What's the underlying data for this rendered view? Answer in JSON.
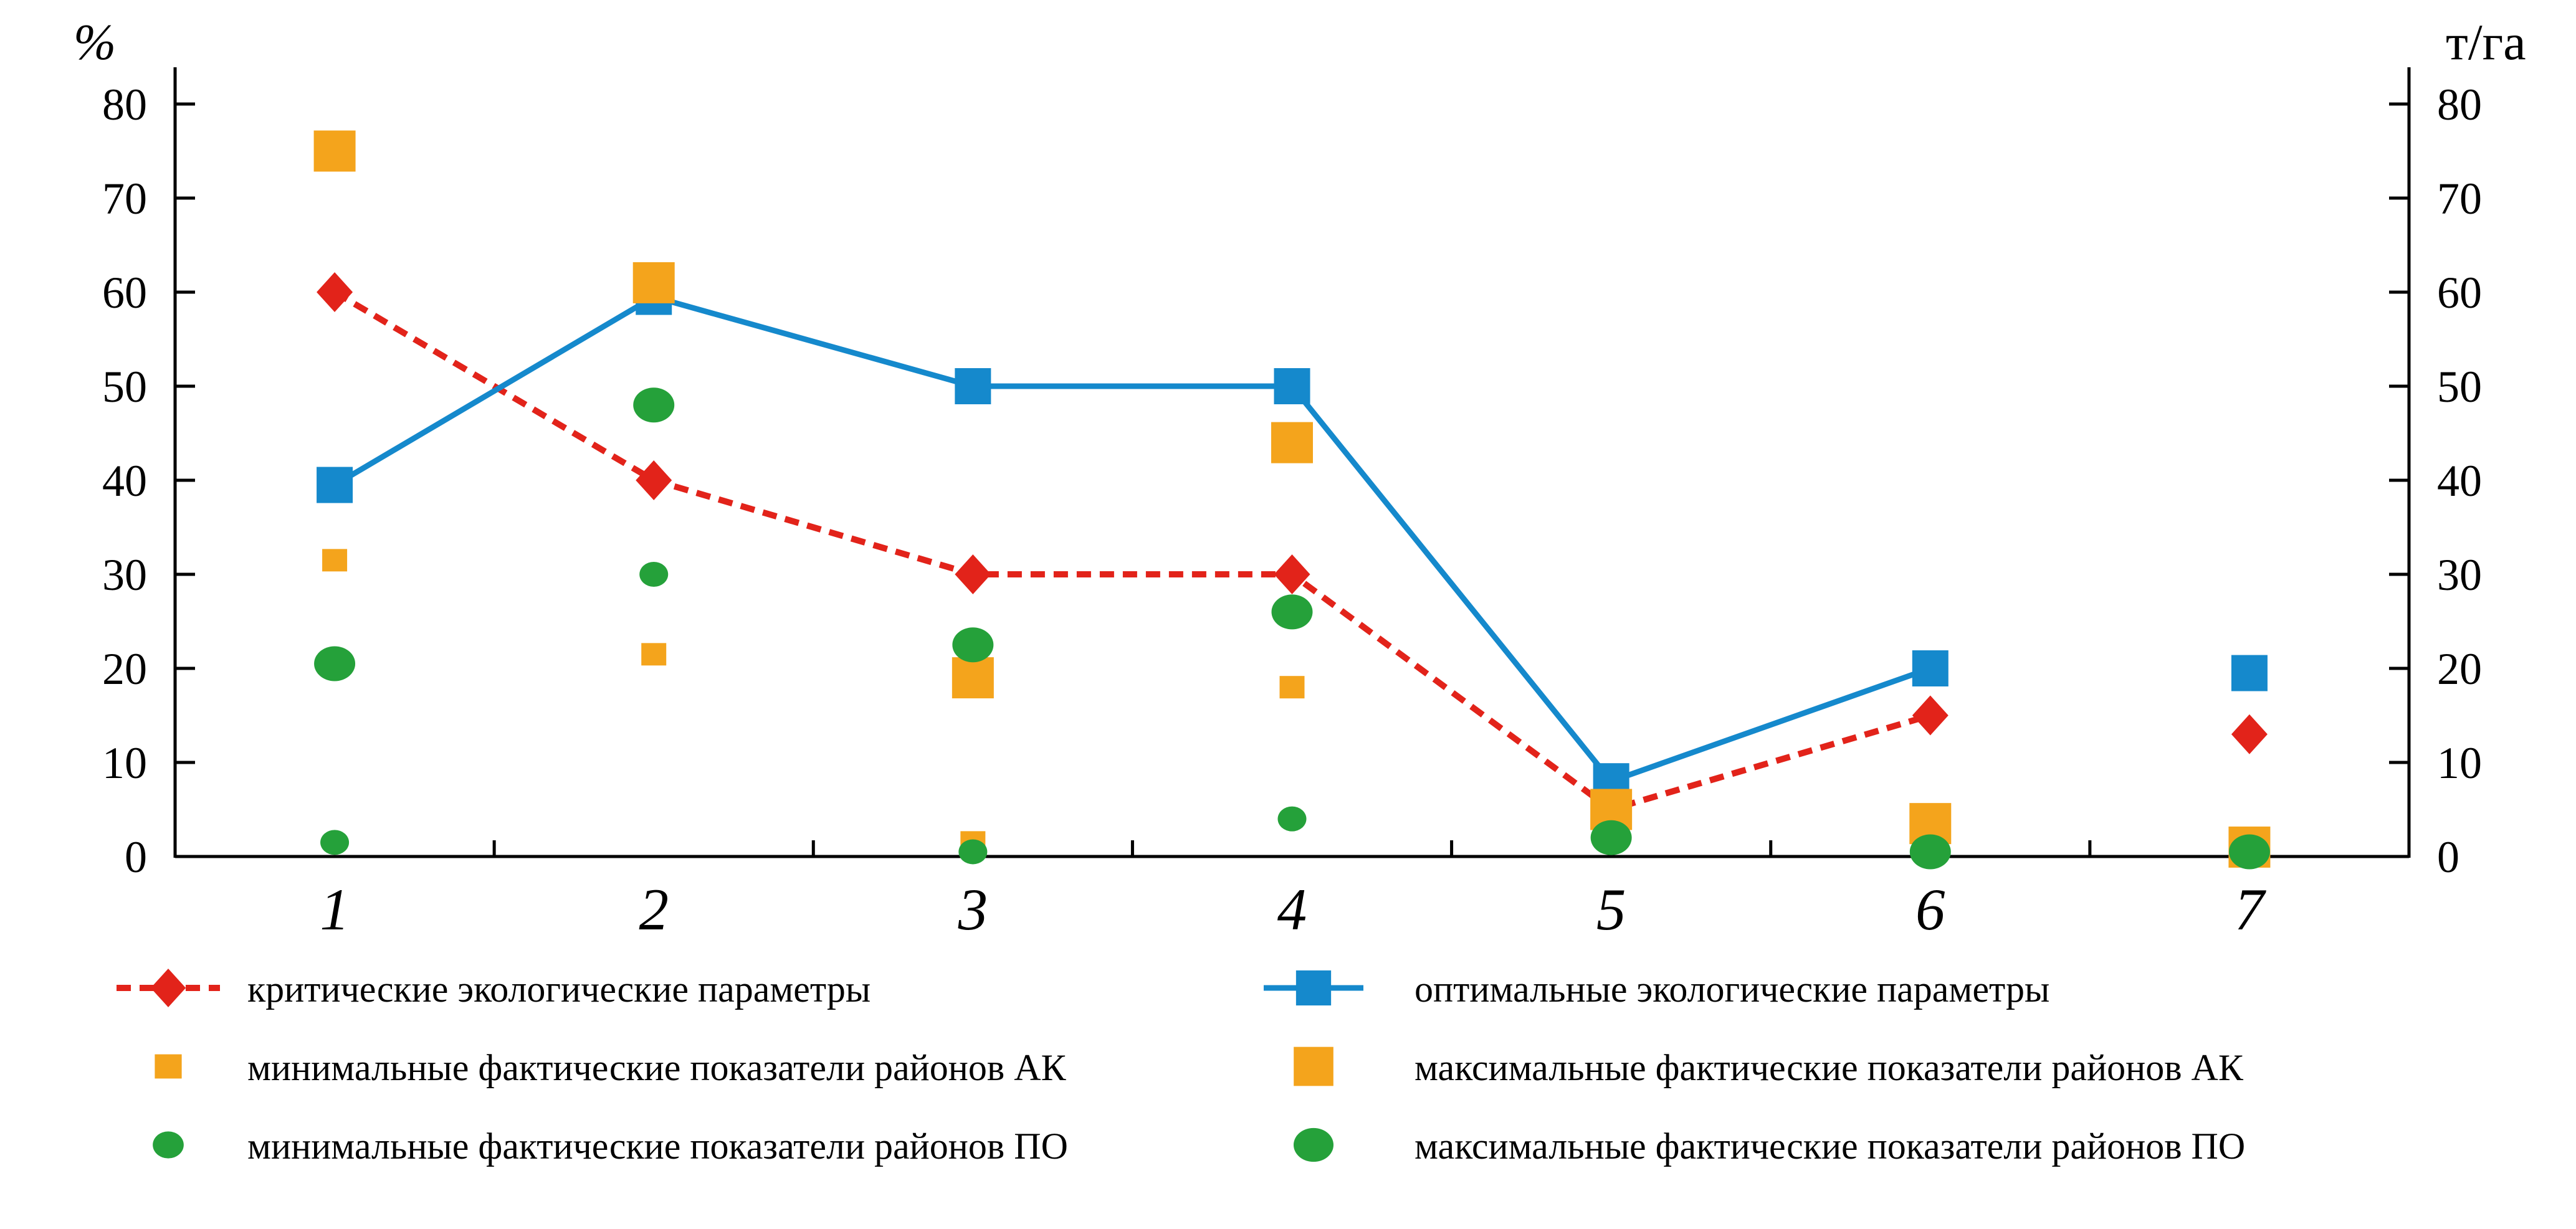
{
  "chart_data": {
    "type": "line",
    "categories": [
      "1",
      "2",
      "3",
      "4",
      "5",
      "6",
      "7"
    ],
    "y_axis": {
      "left_title": "%",
      "right_title": "т/га",
      "min": 0,
      "max": 80,
      "tick_step": 10,
      "ticks": [
        0,
        10,
        20,
        30,
        40,
        50,
        60,
        70,
        80
      ],
      "dual_axis": true,
      "grid": false
    },
    "legend_position": "bottom",
    "series": [
      {
        "name": "критические экологические параметры",
        "color": "#e2231a",
        "marker": "diamond",
        "marker_size": "large",
        "line": "dashed",
        "line_connects": [
          0,
          5
        ],
        "values": [
          60,
          40,
          30,
          30,
          5,
          15,
          13
        ]
      },
      {
        "name": "оптимальные экологические параметры",
        "color": "#1589cc",
        "marker": "square",
        "marker_size": "large",
        "line": "solid",
        "line_connects": [
          0,
          5
        ],
        "values": [
          39.5,
          59.5,
          50,
          50,
          8,
          20,
          19.5
        ]
      },
      {
        "name": "минимальные фактические показатели районов АК",
        "color": "#f4a41c",
        "marker": "square",
        "marker_size": "small",
        "line": "none",
        "line_connects": null,
        "values": [
          31.5,
          21.5,
          1.5,
          18,
          null,
          null,
          null
        ]
      },
      {
        "name": "максимальные фактические показатели районов АК",
        "color": "#f4a41c",
        "marker": "square",
        "marker_size": "xlarge",
        "line": "none",
        "line_connects": null,
        "values": [
          75,
          61,
          19,
          44,
          5,
          3.5,
          1
        ]
      },
      {
        "name": "минимальные фактические показатели районов ПО",
        "color": "#25a13a",
        "marker": "circle",
        "marker_size": "small",
        "line": "none",
        "line_connects": null,
        "values": [
          1.5,
          30,
          0.5,
          4,
          null,
          null,
          null
        ]
      },
      {
        "name": "максимальные фактические показатели районов ПО",
        "color": "#25a13a",
        "marker": "circle",
        "marker_size": "large",
        "line": "none",
        "line_connects": null,
        "values": [
          20.5,
          48,
          22.5,
          26,
          2,
          0.5,
          0.5
        ]
      }
    ],
    "legend_rows": [
      [
        0,
        1
      ],
      [
        2,
        3
      ],
      [
        4,
        5
      ]
    ]
  }
}
